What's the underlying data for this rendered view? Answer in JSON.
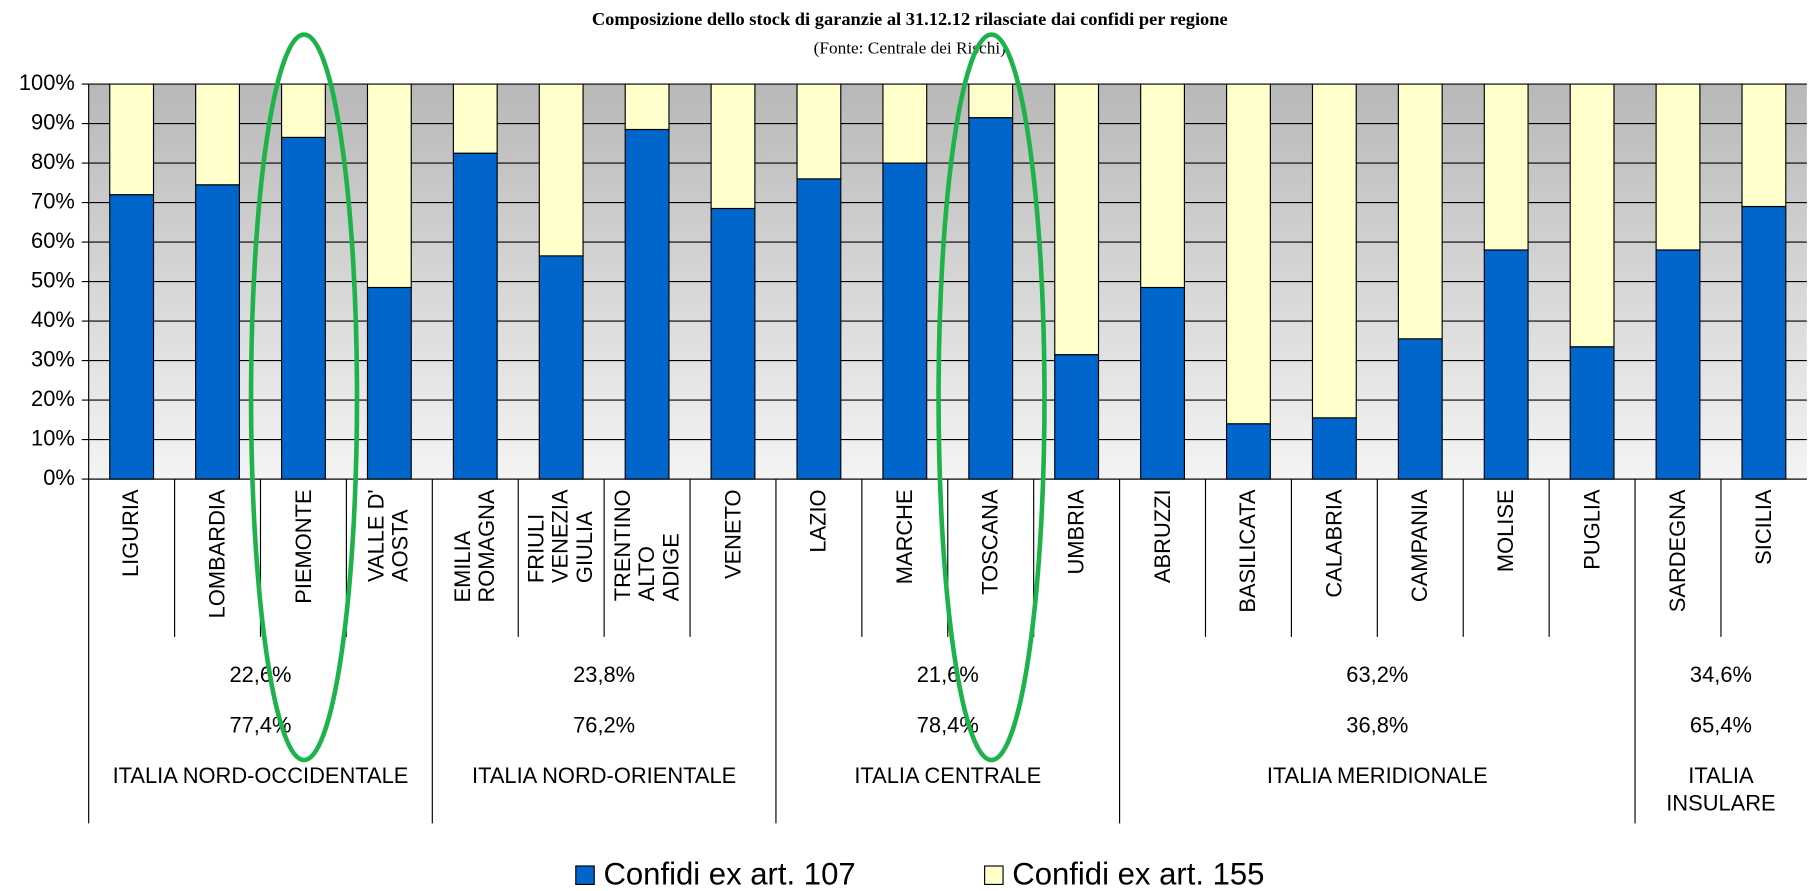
{
  "chart_data": {
    "type": "stacked_bar",
    "title": "Composizione dello stock di garanzie al 31.12.12 rilasciate dai confidi per regione",
    "subtitle": "(Fonte: Centrale dei Rischi)",
    "categories": [
      "LIGURIA",
      "LOMBARDIA",
      "PIEMONTE",
      "VALLE D'\nAOSTA",
      "EMILIA\nROMAGNA",
      "FRIULI\nVENEZIA\nGIULIA",
      "TRENTINO\nALTO\nADIGE",
      "VENETO",
      "LAZIO",
      "MARCHE",
      "TOSCANA",
      "UMBRIA",
      "ABRUZZI",
      "BASILICATA",
      "CALABRIA",
      "CAMPANIA",
      "MOLISE",
      "PUGLIA",
      "SARDEGNA",
      "SICILIA"
    ],
    "series": [
      {
        "name": "Confidi ex art. 107",
        "color": "#0066cc",
        "values": [
          72,
          74.5,
          86.5,
          48.5,
          82.5,
          56.5,
          88.5,
          68.5,
          76,
          80,
          91.5,
          31.5,
          48.5,
          14,
          15.5,
          35.5,
          58,
          33.5,
          58,
          69
        ]
      },
      {
        "name": "Confidi ex art. 155",
        "color": "#ffffcc",
        "values": [
          28,
          25.5,
          13.5,
          51.5,
          17.5,
          43.5,
          11.5,
          31.5,
          24,
          20,
          8.5,
          68.5,
          51.5,
          86,
          84.5,
          64.5,
          42,
          66.5,
          42,
          31
        ]
      }
    ],
    "regions": [
      "ITALIA NORD-OCCIDENTALE",
      "ITALIA NORD-ORIENTALE",
      "ITALIA CENTRALE",
      "ITALIA MERIDIONALE",
      "ITALIA\nINSULARE"
    ],
    "region_shares": [
      {
        "values": [
          22.6,
          23.8,
          21.6,
          63.2,
          34.6
        ],
        "value_labels": [
          "22,6%",
          "23,8%",
          "21,6%",
          "63,2%",
          "34,6%"
        ]
      },
      {
        "values": [
          77.4,
          76.2,
          78.4,
          36.8,
          65.4
        ],
        "value_labels": [
          "77,4%",
          "76,2%",
          "78,4%",
          "36,8%",
          "65,4%"
        ]
      }
    ],
    "ylim": [
      0,
      100
    ],
    "yticks": [
      {
        "value": 0,
        "label": "0%"
      },
      {
        "value": 10,
        "label": "10%"
      },
      {
        "value": 20,
        "label": "20%"
      },
      {
        "value": 30,
        "label": "30%"
      },
      {
        "value": 40,
        "label": "40%"
      },
      {
        "value": 50,
        "label": "50%"
      },
      {
        "value": 60,
        "label": "60%"
      },
      {
        "value": 70,
        "label": "70%"
      },
      {
        "value": 80,
        "label": "80%"
      },
      {
        "value": 90,
        "label": "90%"
      },
      {
        "value": 100,
        "label": "100%"
      }
    ],
    "grid": true
  }
}
